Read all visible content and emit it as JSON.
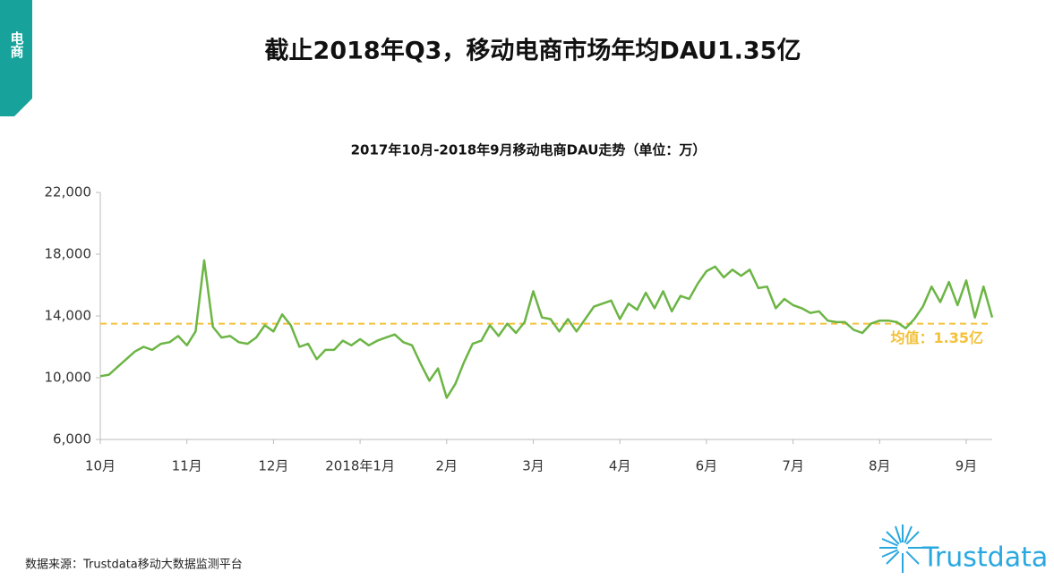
{
  "header": {
    "tab": "电商",
    "title": "截止2018年Q3，移动电商市场年均DAU1.35亿"
  },
  "chart_data": {
    "type": "line",
    "title": "2017年10月-2018年9月移动电商DAU走势（单位：万）",
    "categories": [
      "10月",
      null,
      null,
      null,
      null,
      null,
      null,
      null,
      null,
      null,
      "11月",
      null,
      null,
      null,
      null,
      null,
      null,
      null,
      null,
      null,
      "12月",
      null,
      null,
      null,
      null,
      null,
      null,
      null,
      null,
      null,
      "2018年1月",
      null,
      null,
      null,
      null,
      null,
      null,
      null,
      null,
      null,
      "2月",
      null,
      null,
      null,
      null,
      null,
      null,
      null,
      null,
      null,
      "3月",
      null,
      null,
      null,
      null,
      null,
      null,
      null,
      null,
      null,
      "4月",
      null,
      null,
      null,
      null,
      null,
      null,
      null,
      null,
      null,
      "6月",
      null,
      null,
      null,
      null,
      null,
      null,
      null,
      null,
      null,
      "7月",
      null,
      null,
      null,
      null,
      null,
      null,
      null,
      null,
      null,
      "8月",
      null,
      null,
      null,
      null,
      null,
      null,
      null,
      null,
      null,
      "9月",
      null,
      null,
      null
    ],
    "series": [
      {
        "name": "DAU",
        "color": "#6cb545",
        "values": [
          10100,
          10200,
          10700,
          11200,
          11700,
          12000,
          11800,
          12200,
          12300,
          12700,
          12100,
          13000,
          17600,
          13300,
          12600,
          12700,
          12300,
          12200,
          12600,
          13400,
          13000,
          14100,
          13400,
          12000,
          12200,
          11200,
          11800,
          11800,
          12400,
          12100,
          12500,
          12100,
          12400,
          12600,
          12800,
          12300,
          12100,
          10900,
          9800,
          10600,
          8700,
          9600,
          11000,
          12200,
          12400,
          13400,
          12700,
          13500,
          12900,
          13600,
          15600,
          13900,
          13800,
          13000,
          13800,
          13000,
          13800,
          14600,
          14800,
          15000,
          13800,
          14800,
          14400,
          15500,
          14500,
          15600,
          14300,
          15300,
          15100,
          16100,
          16900,
          17200,
          16500,
          17000,
          16600,
          17000,
          15800,
          15900,
          14500,
          15100,
          14700,
          14500,
          14200,
          14300,
          13700,
          13600,
          13600,
          13100,
          12900,
          13500,
          13700,
          13700,
          13600,
          13200,
          13800,
          14600,
          15900,
          14900,
          16200,
          14700,
          16300,
          13900,
          15900,
          13900
        ]
      }
    ],
    "ylim": [
      6000,
      22000
    ],
    "yticks": [
      {
        "value": 6000,
        "label": "6,000"
      },
      {
        "value": 10000,
        "label": "10,000"
      },
      {
        "value": 14000,
        "label": "14,000"
      },
      {
        "value": 18000,
        "label": "18,000"
      },
      {
        "value": 22000,
        "label": "22,000"
      }
    ],
    "mean": {
      "value": 13500,
      "label": "均值：1.35亿",
      "color": "#f3c13a"
    }
  },
  "footer": {
    "source": "数据来源：Trustdata移动大数据监测平台",
    "logo": "Trustdata"
  }
}
